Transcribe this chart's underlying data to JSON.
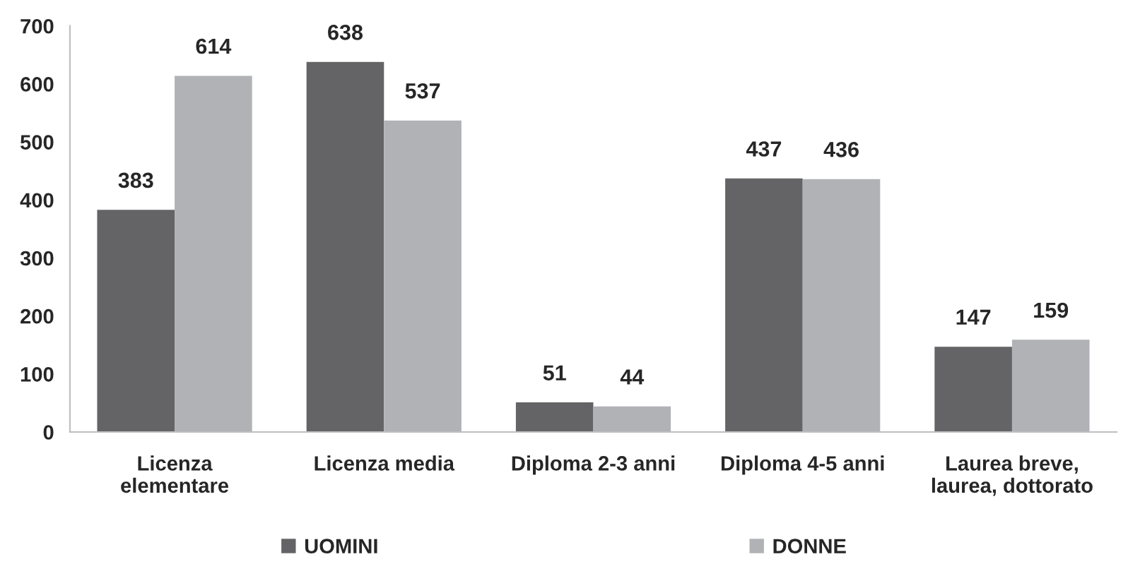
{
  "chart_data": {
    "type": "bar",
    "categories": [
      "Licenza\nelementare",
      "Licenza media",
      "Diploma 2-3 anni",
      "Diploma 4-5 anni",
      "Laurea breve,\nlaurea, dottorato"
    ],
    "series": [
      {
        "name": "UOMINI",
        "color": "#646466",
        "values": [
          383,
          638,
          51,
          437,
          147
        ]
      },
      {
        "name": "DONNE",
        "color": "#b1b2b6",
        "values": [
          614,
          537,
          44,
          436,
          159
        ]
      }
    ],
    "ylim": [
      0,
      700
    ],
    "yticks": [
      0,
      100,
      200,
      300,
      400,
      500,
      600,
      700
    ],
    "data_labels": true,
    "grid": false,
    "legend": "bottom"
  }
}
